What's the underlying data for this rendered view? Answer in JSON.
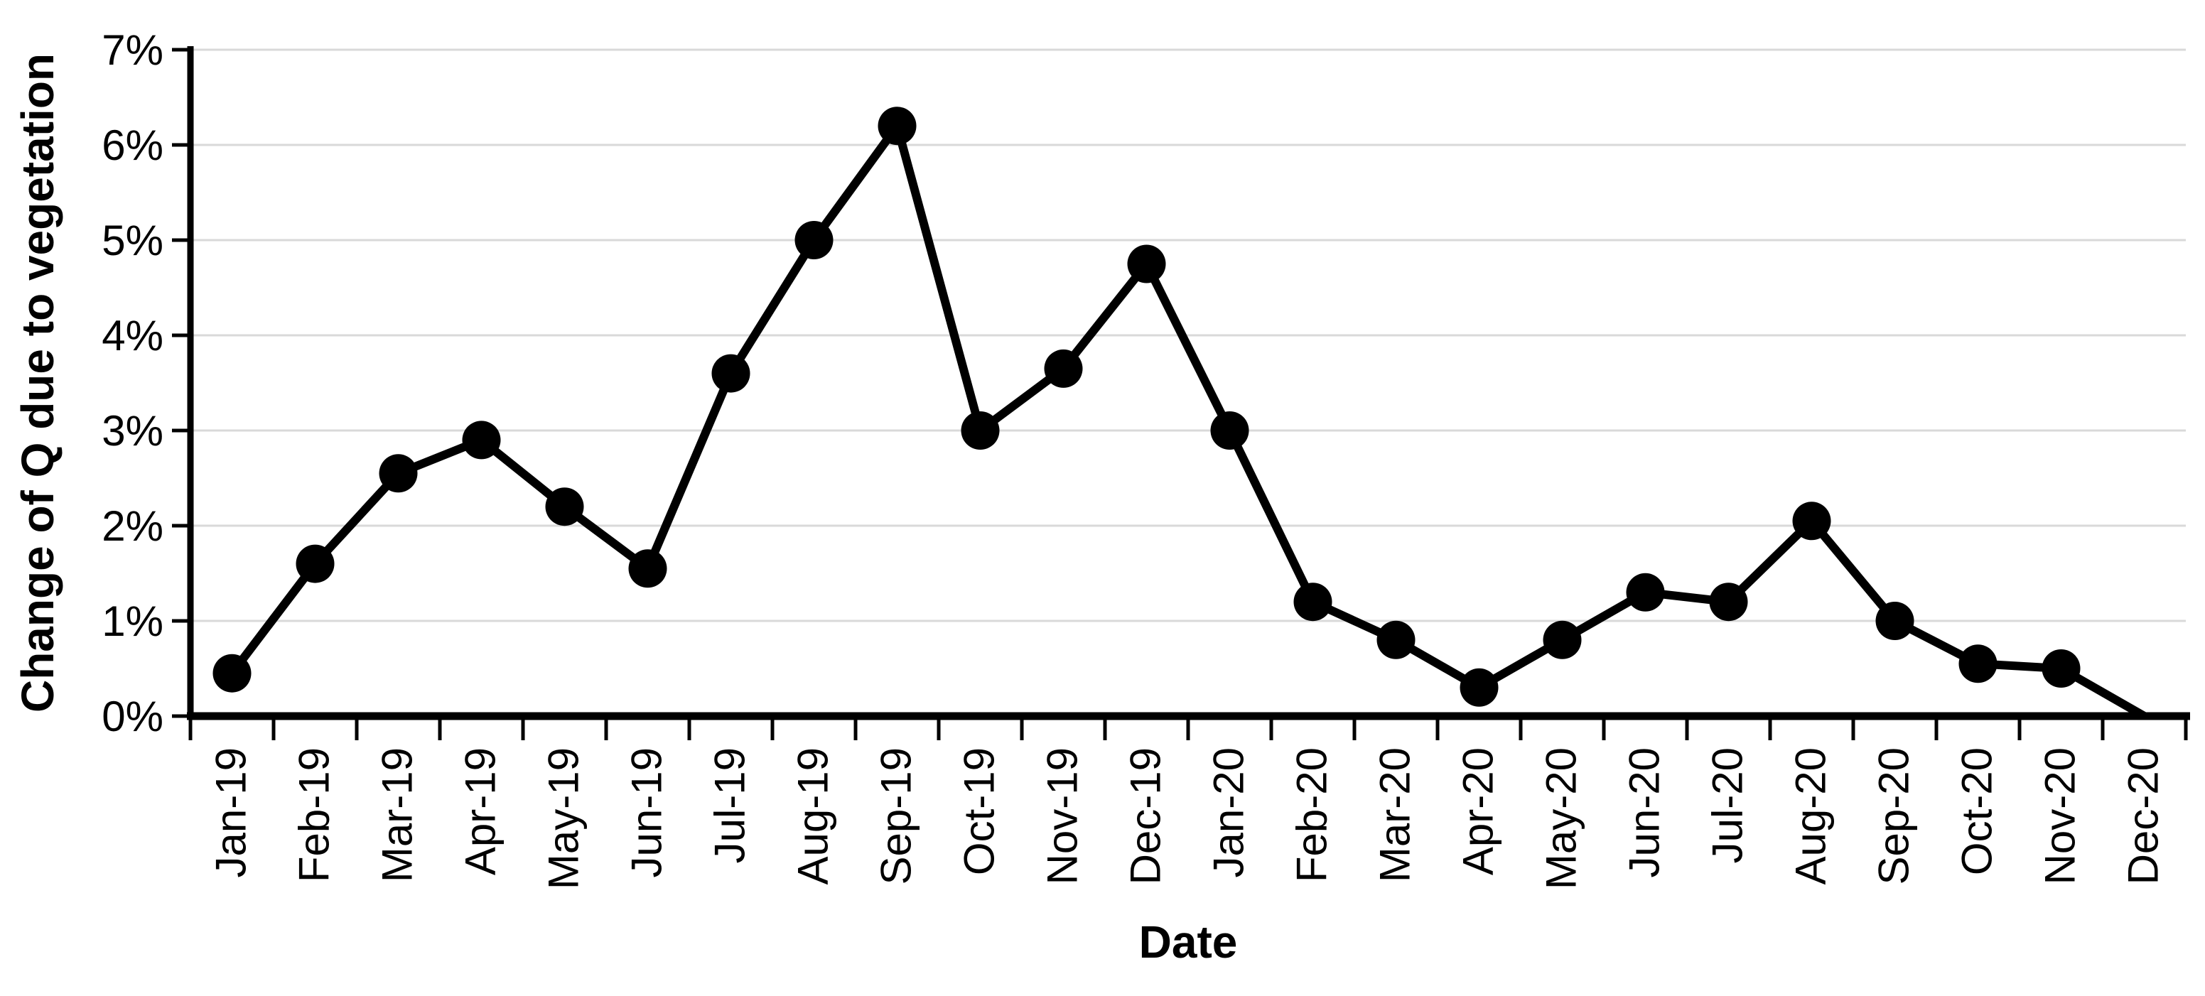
{
  "page": {
    "background_color": "#ffffff",
    "text_color": "#000000"
  },
  "chart_data": {
    "type": "line",
    "title": "",
    "xlabel": "Date",
    "ylabel": "Change of Q due to vegetation",
    "categories": [
      "Jan-19",
      "Feb-19",
      "Mar-19",
      "Apr-19",
      "May-19",
      "Jun-19",
      "Jul-19",
      "Aug-19",
      "Sep-19",
      "Oct-19",
      "Nov-19",
      "Dec-19",
      "Jan-20",
      "Feb-20",
      "Mar-20",
      "Apr-20",
      "May-20",
      "Jun-20",
      "Jul-20",
      "Aug-20",
      "Sep-20",
      "Oct-20",
      "Nov-20",
      "Dec-20"
    ],
    "values": [
      0.45,
      1.6,
      2.55,
      2.9,
      2.2,
      1.55,
      3.6,
      5.0,
      6.2,
      3.0,
      3.65,
      4.75,
      3.0,
      1.2,
      0.8,
      0.3,
      0.8,
      1.3,
      1.2,
      2.05,
      1.0,
      0.55,
      0.5,
      0.0
    ],
    "y_tick_labels": [
      "0%",
      "1%",
      "2%",
      "3%",
      "4%",
      "5%",
      "6%",
      "7%"
    ],
    "y_tick_values": [
      0,
      1,
      2,
      3,
      4,
      5,
      6,
      7
    ],
    "ylim": [
      0,
      7
    ],
    "grid": true,
    "gridline_color": "#d9d9d9",
    "axis_color": "#000000",
    "line_color": "#000000",
    "marker": "circle",
    "marker_color": "#000000",
    "marker_on_last_point": false,
    "legend_position": "none",
    "x_labels_rotated_degrees": -90
  }
}
